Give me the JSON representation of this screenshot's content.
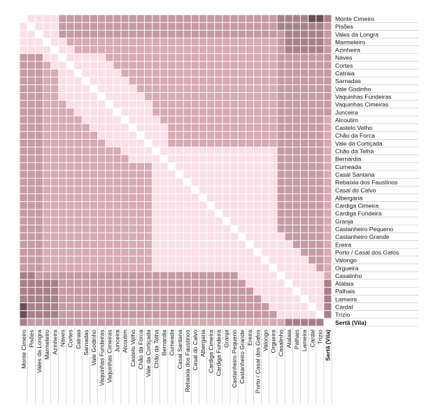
{
  "chart_data": {
    "type": "heatmap",
    "title": "",
    "xlabel": "",
    "ylabel": "",
    "labels": [
      "Monte Cimeiro",
      "Pisões",
      "Vales da Longra",
      "Marmeleiro",
      "Azinheira",
      "Naves",
      "Cortes",
      "Catraia",
      "Sarnadas",
      "Vale Godinho",
      "Vaquinhas Fundeiras",
      "Vaquinhas Cimeiras",
      "Junceira",
      "Alcoutim",
      "Castelo Velho",
      "Chão da Forca",
      "Vale da Cortiçada",
      "Chão da Telha",
      "Bernardia",
      "Cumeada",
      "Casal Santana",
      "Rebaixia dos Faustinos",
      "Casal do Calvo",
      "Albergaria",
      "Cardiga Cimeira",
      "Cardiga Fundeira",
      "Granja",
      "Castanheiro Pequeno",
      "Castanheiro Grande",
      "Ereira",
      "Porto / Casal dos Gafos",
      "Valongo",
      "Orgueira",
      "Casalinho",
      "Atalaia",
      "Palhais",
      "Lameira",
      "Cardal",
      "Trízio",
      "Sertã (Vila)"
    ],
    "highlight_label": "Sertã (Vila)",
    "value_range": [
      0,
      4
    ],
    "legend": "none",
    "colors": {
      "diagonal": "#ffffff",
      "level0": "#fbdfe8",
      "level1": "#d7aab4",
      "level2": "#c69aa4",
      "level3": "#a8808a",
      "level4": "#6d4c55",
      "gridline": "#ffffff",
      "label_text": "#111111"
    }
  }
}
